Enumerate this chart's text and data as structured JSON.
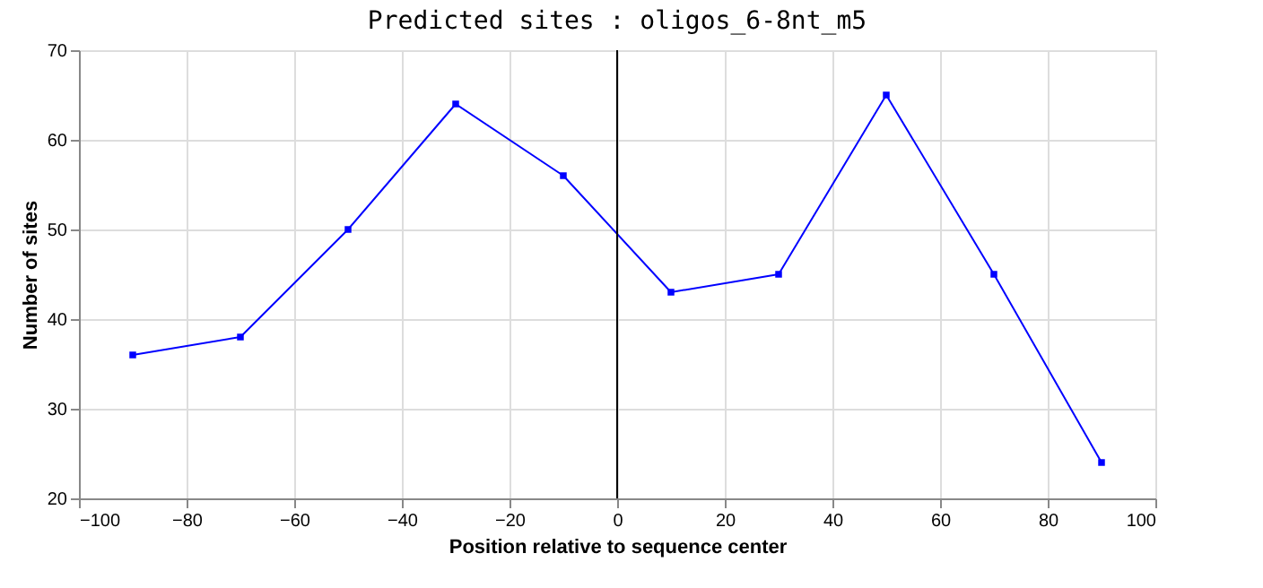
{
  "chart_data": {
    "type": "line",
    "title": "Predicted sites : oligos_6-8nt_m5",
    "xlabel": "Position relative to sequence center",
    "ylabel": "Number of sites",
    "x": [
      -90,
      -70,
      -50,
      -30,
      -10,
      10,
      30,
      50,
      70,
      90
    ],
    "series": [
      {
        "color": "#0000ff",
        "values": [
          36,
          38,
          50,
          64,
          56,
          43,
          45,
          65,
          45,
          24
        ]
      }
    ],
    "xlim": [
      -100,
      100
    ],
    "xticks": [
      -100,
      -80,
      -60,
      -40,
      -20,
      0,
      20,
      40,
      60,
      80,
      100
    ],
    "ylim": [
      20,
      70
    ],
    "yticks": [
      20,
      30,
      40,
      50,
      60,
      70
    ],
    "ref_lines": [
      {
        "axis": "x",
        "value": 0,
        "color": "#000000"
      }
    ],
    "grid": true,
    "marker": "square",
    "line_style": "solid"
  }
}
